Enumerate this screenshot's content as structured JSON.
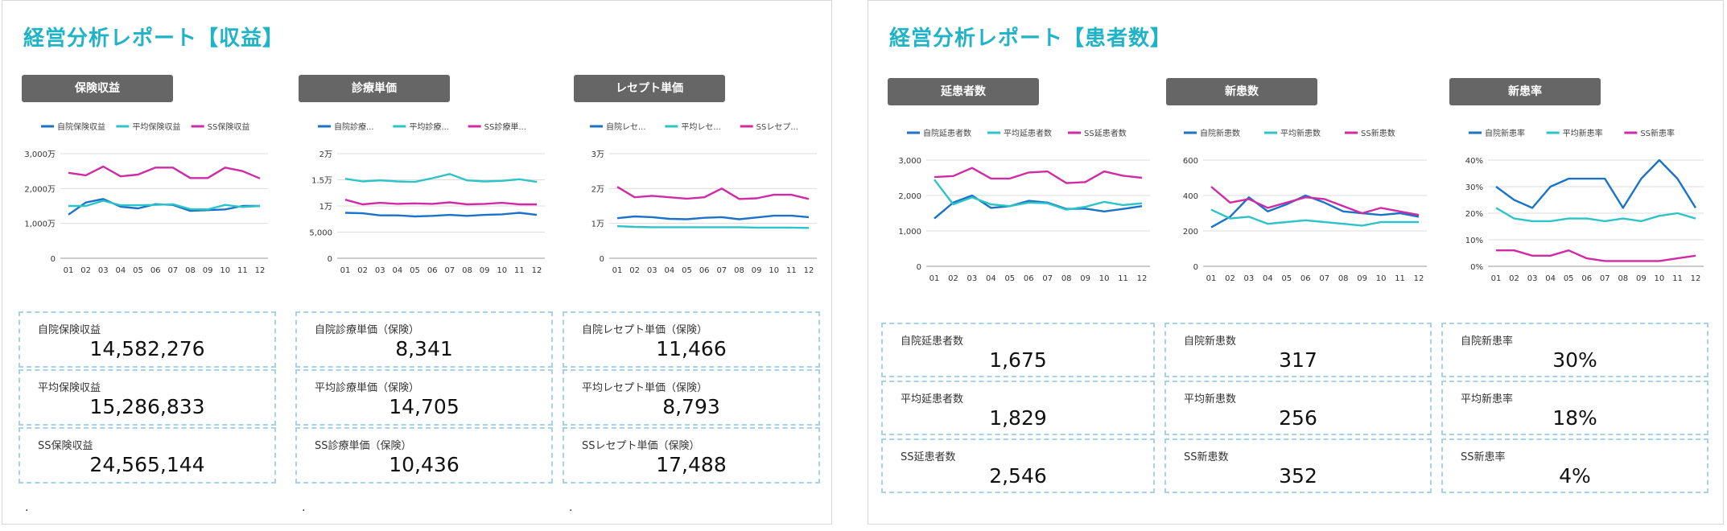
{
  "panels": [
    {
      "title": "経営分析レポート【収益】",
      "sections": [
        {
          "header": "保険収益",
          "chart_data": {
            "type": "line",
            "legend": "top",
            "grid": true,
            "categories": [
              "01",
              "02",
              "03",
              "04",
              "05",
              "06",
              "07",
              "08",
              "09",
              "10",
              "11",
              "12"
            ],
            "yticks": [
              "0",
              "1,000万",
              "2,000万",
              "3,000万"
            ],
            "ylim": [
              0,
              30000000
            ],
            "series": [
              {
                "name": "自院保険収益",
                "color": "#1a73c8",
                "values": [
                  12500000,
                  16000000,
                  17000000,
                  14800000,
                  14300000,
                  15500000,
                  15300000,
                  13600000,
                  13800000,
                  14000000,
                  15000000,
                  15000000
                ]
              },
              {
                "name": "平均保険収益",
                "color": "#2cc4c8",
                "values": [
                  15000000,
                  15000000,
                  16500000,
                  15200000,
                  15200000,
                  15300000,
                  15500000,
                  14100000,
                  14000000,
                  15300000,
                  14700000,
                  15000000
                ]
              },
              {
                "name": "SS保険収益",
                "color": "#d02aa6",
                "values": [
                  24500000,
                  23800000,
                  26300000,
                  23500000,
                  24000000,
                  26000000,
                  26000000,
                  23000000,
                  23000000,
                  26000000,
                  25000000,
                  22900000
                ]
              }
            ]
          },
          "stats": [
            {
              "label": "自院保険収益",
              "value": "14,582,276"
            },
            {
              "label": "平均保険収益",
              "value": "15,286,833"
            },
            {
              "label": "SS保険収益",
              "value": "24,565,144"
            }
          ],
          "footnote": "."
        },
        {
          "header": "診療単価",
          "chart_data": {
            "type": "line",
            "legend": "top",
            "grid": true,
            "categories": [
              "01",
              "02",
              "03",
              "04",
              "05",
              "06",
              "07",
              "08",
              "09",
              "10",
              "11",
              "12"
            ],
            "yticks": [
              "0",
              "5,000",
              "1万",
              "1.5万",
              "2万"
            ],
            "ylim": [
              0,
              20000
            ],
            "series": [
              {
                "name": "自院診療...",
                "color": "#1a73c8",
                "values": [
                  8700,
                  8600,
                  8200,
                  8200,
                  8000,
                  8100,
                  8300,
                  8100,
                  8300,
                  8400,
                  8700,
                  8300
                ]
              },
              {
                "name": "平均診療...",
                "color": "#2cc4c8",
                "values": [
                  15200,
                  14700,
                  14900,
                  14700,
                  14600,
                  15300,
                  16100,
                  14900,
                  14700,
                  14800,
                  15100,
                  14600
                ]
              },
              {
                "name": "SS診療単...",
                "color": "#d02aa6",
                "values": [
                  11200,
                  10300,
                  10600,
                  10400,
                  10500,
                  10400,
                  10700,
                  10300,
                  10400,
                  10600,
                  10300,
                  10300
                ]
              }
            ]
          },
          "stats": [
            {
              "label": "自院診療単価（保険）",
              "value": "8,341"
            },
            {
              "label": "平均診療単価（保険）",
              "value": "14,705"
            },
            {
              "label": "SS診療単価（保険）",
              "value": "10,436"
            }
          ],
          "footnote": "."
        },
        {
          "header": "レセプト単価",
          "chart_data": {
            "type": "line",
            "legend": "top",
            "grid": true,
            "categories": [
              "01",
              "02",
              "03",
              "04",
              "05",
              "06",
              "07",
              "08",
              "09",
              "10",
              "11",
              "12"
            ],
            "yticks": [
              "0",
              "1万",
              "2万",
              "3万"
            ],
            "ylim": [
              0,
              30000
            ],
            "series": [
              {
                "name": "自院レセ...",
                "color": "#1a73c8",
                "values": [
                  11500,
                  12000,
                  11800,
                  11300,
                  11200,
                  11600,
                  11800,
                  11200,
                  11700,
                  12200,
                  12200,
                  11800
                ]
              },
              {
                "name": "平均レセ...",
                "color": "#2cc4c8",
                "values": [
                  9200,
                  9000,
                  8900,
                  8900,
                  8900,
                  8900,
                  8900,
                  8900,
                  8800,
                  8800,
                  8800,
                  8700
                ]
              },
              {
                "name": "SSレセプ...",
                "color": "#d02aa6",
                "values": [
                  20500,
                  17500,
                  17900,
                  17500,
                  17100,
                  17500,
                  20000,
                  17000,
                  17200,
                  18200,
                  18200,
                  17000
                ]
              }
            ]
          },
          "stats": [
            {
              "label": "自院レセプト単価（保険）",
              "value": "11,466"
            },
            {
              "label": "平均レセプト単価（保険）",
              "value": "8,793"
            },
            {
              "label": "SSレセプト単価（保険）",
              "value": "17,488"
            }
          ],
          "footnote": "."
        }
      ]
    },
    {
      "title": "経営分析レポート【患者数】",
      "sections": [
        {
          "header": "延患者数",
          "chart_data": {
            "type": "line",
            "legend": "top",
            "grid": true,
            "categories": [
              "01",
              "02",
              "03",
              "04",
              "05",
              "06",
              "07",
              "08",
              "09",
              "10",
              "11",
              "12"
            ],
            "yticks": [
              "0",
              "1,000",
              "2,000",
              "3,000"
            ],
            "ylim": [
              0,
              3000
            ],
            "series": [
              {
                "name": "自院延患者数",
                "color": "#1a73c8",
                "values": [
                  1350,
                  1800,
                  2000,
                  1650,
                  1700,
                  1850,
                  1800,
                  1620,
                  1630,
                  1550,
                  1620,
                  1700
                ]
              },
              {
                "name": "平均延患者数",
                "color": "#2cc4c8",
                "values": [
                  2450,
                  1750,
                  1950,
                  1750,
                  1700,
                  1800,
                  1780,
                  1600,
                  1680,
                  1820,
                  1730,
                  1780
                ]
              },
              {
                "name": "SS延患者数",
                "color": "#d02aa6",
                "values": [
                  2520,
                  2550,
                  2780,
                  2480,
                  2480,
                  2650,
                  2680,
                  2350,
                  2380,
                  2680,
                  2560,
                  2500
                ]
              }
            ]
          },
          "stats": [
            {
              "label": "自院延患者数",
              "value": "1,675"
            },
            {
              "label": "平均延患者数",
              "value": "1,829"
            },
            {
              "label": "SS延患者数",
              "value": "2,546"
            }
          ]
        },
        {
          "header": "新患数",
          "chart_data": {
            "type": "line",
            "legend": "top",
            "grid": true,
            "categories": [
              "01",
              "02",
              "03",
              "04",
              "05",
              "06",
              "07",
              "08",
              "09",
              "10",
              "11",
              "12"
            ],
            "yticks": [
              "0",
              "200",
              "400",
              "600"
            ],
            "ylim": [
              0,
              600
            ],
            "series": [
              {
                "name": "自院新患数",
                "color": "#1a73c8",
                "values": [
                  220,
                  280,
                  390,
                  310,
                  350,
                  400,
                  360,
                  310,
                  300,
                  290,
                  300,
                  280
                ]
              },
              {
                "name": "平均新患数",
                "color": "#2cc4c8",
                "values": [
                  320,
                  270,
                  280,
                  240,
                  250,
                  260,
                  250,
                  240,
                  230,
                  250,
                  250,
                  250
                ]
              },
              {
                "name": "SS新患数",
                "color": "#d02aa6",
                "values": [
                  450,
                  360,
                  380,
                  330,
                  360,
                  390,
                  380,
                  340,
                  300,
                  330,
                  310,
                  290
                ]
              }
            ]
          },
          "stats": [
            {
              "label": "自院新患数",
              "value": "317"
            },
            {
              "label": "平均新患数",
              "value": "256"
            },
            {
              "label": "SS新患数",
              "value": "352"
            }
          ]
        },
        {
          "header": "新患率",
          "chart_data": {
            "type": "line",
            "legend": "top",
            "grid": true,
            "categories": [
              "01",
              "02",
              "03",
              "04",
              "05",
              "06",
              "07",
              "08",
              "09",
              "10",
              "11",
              "12"
            ],
            "yticks": [
              "0%",
              "10%",
              "20%",
              "30%",
              "40%"
            ],
            "ylim": [
              0,
              40
            ],
            "series": [
              {
                "name": "自院新患率",
                "color": "#1a73c8",
                "values": [
                  30,
                  25,
                  22,
                  30,
                  33,
                  33,
                  33,
                  22,
                  33,
                  40,
                  33,
                  22
                ]
              },
              {
                "name": "平均新患率",
                "color": "#2cc4c8",
                "values": [
                  22,
                  18,
                  17,
                  17,
                  18,
                  18,
                  17,
                  18,
                  17,
                  19,
                  20,
                  18
                ]
              },
              {
                "name": "SS新患率",
                "color": "#d02aa6",
                "values": [
                  6,
                  6,
                  4,
                  4,
                  6,
                  3,
                  2,
                  2,
                  2,
                  2,
                  3,
                  4
                ]
              }
            ]
          },
          "stats": [
            {
              "label": "自院新患率",
              "value": "30%"
            },
            {
              "label": "平均新患率",
              "value": "18%"
            },
            {
              "label": "SS新患率",
              "value": "4%"
            }
          ]
        }
      ]
    }
  ]
}
